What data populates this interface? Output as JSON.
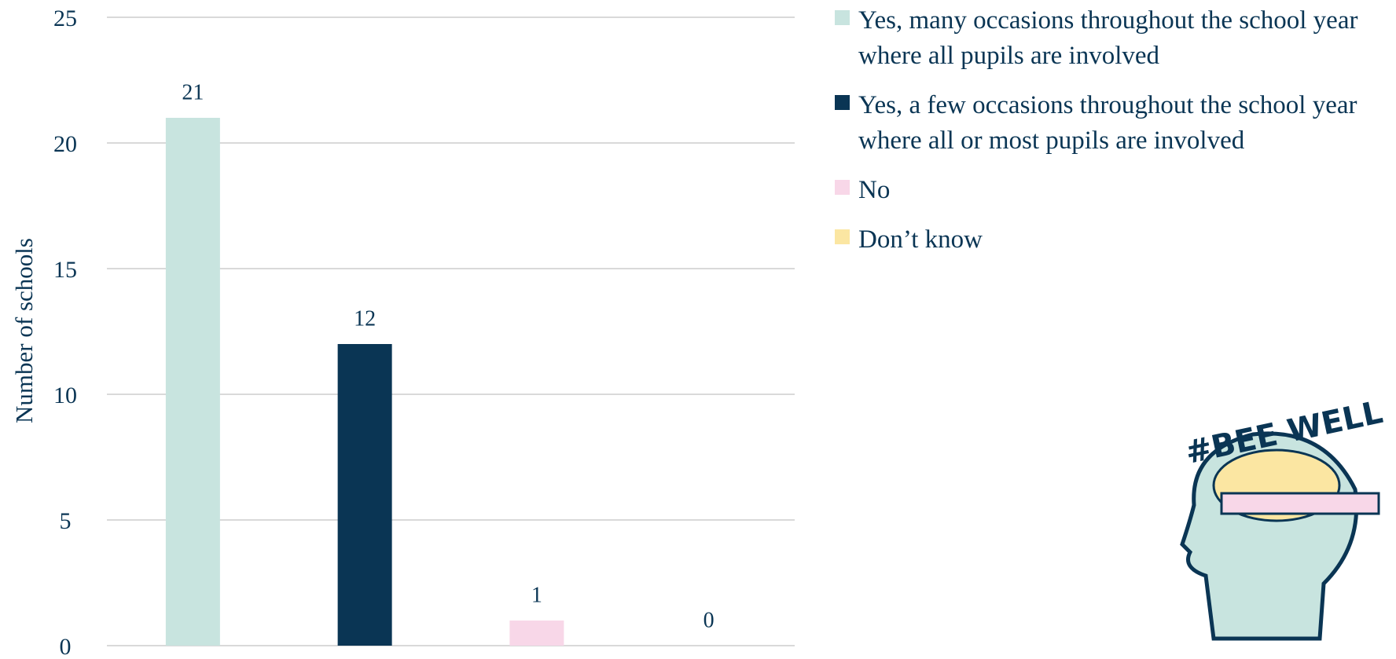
{
  "chart_data": {
    "type": "bar",
    "y_label": "Number of schools",
    "categories": [
      null,
      null,
      null,
      null
    ],
    "series": [
      {
        "name": "Yes, many occasions throughout the school year where all pupils are involved",
        "color": "#c8e4df",
        "values": [
          21,
          null,
          null,
          null
        ]
      },
      {
        "name": "Yes, a few occasions throughout the school year where all or most pupils are involved",
        "color": "#0a3554",
        "values": [
          null,
          12,
          null,
          null
        ]
      },
      {
        "name": "No",
        "color": "#f8d7e8",
        "values": [
          null,
          null,
          1,
          null
        ]
      },
      {
        "name": "Don’t know",
        "color": "#fbe6a2",
        "values": [
          null,
          null,
          null,
          0
        ]
      }
    ],
    "ylim": [
      0,
      25
    ],
    "yticks": [
      0,
      5,
      10,
      15,
      20,
      25
    ],
    "grid": true,
    "logo_text": "#BEE WELL"
  }
}
